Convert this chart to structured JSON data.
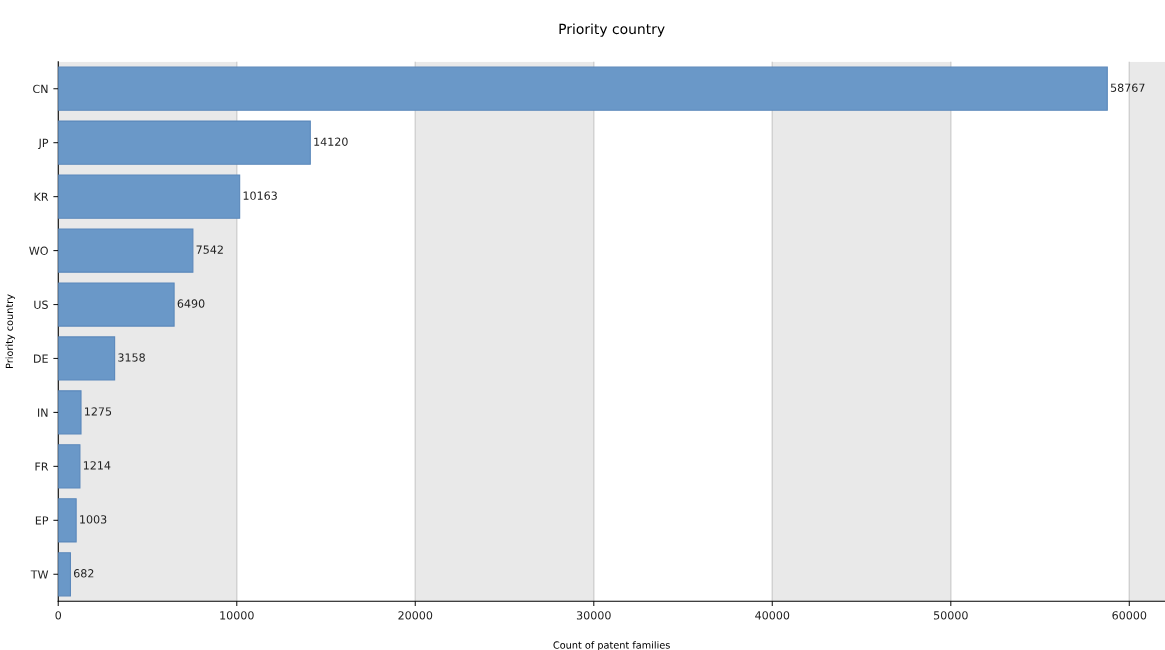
{
  "chart_data": {
    "type": "bar",
    "orientation": "horizontal",
    "title": "Priority country",
    "xlabel": "Count of patent families",
    "ylabel": "Priority country",
    "categories": [
      "CN",
      "JP",
      "KR",
      "WO",
      "US",
      "DE",
      "IN",
      "FR",
      "EP",
      "TW"
    ],
    "values": [
      58767,
      14120,
      10163,
      7542,
      6490,
      3158,
      1275,
      1214,
      1003,
      682
    ],
    "color": "#6a98c8",
    "data_labels": true,
    "xlim": [
      0,
      62000
    ],
    "xticks": [
      0,
      10000,
      20000,
      30000,
      40000,
      50000,
      60000
    ],
    "grid": "x",
    "bands": [
      {
        "axis": "x",
        "from": 0,
        "to": 10000,
        "color": "#e9e9e9"
      },
      {
        "axis": "x",
        "from": 20000,
        "to": 30000,
        "color": "#e9e9e9"
      },
      {
        "axis": "x",
        "from": 40000,
        "to": 50000,
        "color": "#e9e9e9"
      },
      {
        "axis": "x",
        "from": 60000,
        "to": 62000,
        "color": "#e9e9e9"
      }
    ]
  }
}
